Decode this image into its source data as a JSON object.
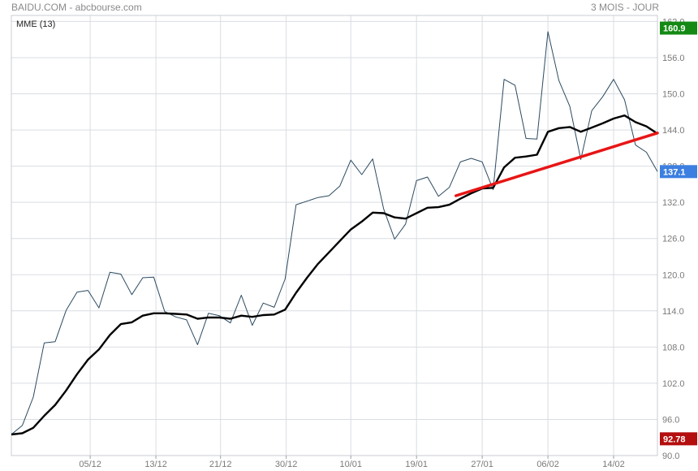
{
  "header": {
    "title": "BAIDU.COM - abcbourse.com",
    "period": "3 MOIS - JOUR"
  },
  "indicator": {
    "label": "MME (13)"
  },
  "colors": {
    "price": "#2b4a60",
    "ema": "#000000",
    "trend": "#e81515",
    "grid": "#d9dde2",
    "badge_high": "#148a14",
    "badge_last": "#3d7fe0",
    "badge_low": "#b40e0e"
  },
  "chart_data": {
    "type": "line",
    "title": "BAIDU.COM - abcbourse.com",
    "xlabel": "",
    "ylabel": "",
    "ylim": [
      90,
      163
    ],
    "y_ticks": [
      "90.0",
      "96.0",
      "102.0",
      "108.0",
      "114.0",
      "120.0",
      "126.0",
      "132.0",
      "138.0",
      "144.0",
      "150.0",
      "156.0",
      "162.0"
    ],
    "x_ticks": [
      {
        "label": "05/12",
        "index": 7.2
      },
      {
        "label": "13/12",
        "index": 13.2
      },
      {
        "label": "21/12",
        "index": 19.1
      },
      {
        "label": "30/12",
        "index": 25.1
      },
      {
        "label": "10/01",
        "index": 31.0
      },
      {
        "label": "19/01",
        "index": 37.0
      },
      {
        "label": "27/01",
        "index": 43.0
      },
      {
        "label": "06/02",
        "index": 49.0
      },
      {
        "label": "14/02",
        "index": 55.0
      }
    ],
    "series": [
      {
        "values": [
          93.5,
          95.0,
          99.7,
          108.7,
          108.9,
          114.1,
          117.1,
          117.4,
          114.5,
          120.4,
          120.1,
          116.7,
          119.5,
          119.6,
          113.9,
          113.0,
          112.5,
          108.4,
          113.6,
          113.2,
          112.0,
          116.6,
          111.6,
          115.3,
          114.6,
          119.3,
          131.6,
          132.2,
          132.8,
          133.1,
          134.7,
          139.0,
          136.6,
          139.2,
          130.9,
          125.9,
          128.4,
          135.6,
          136.2,
          133.0,
          134.5,
          138.7,
          139.3,
          138.7,
          134.1,
          152.4,
          151.4,
          142.6,
          142.5,
          160.3,
          152.2,
          147.9,
          139.1,
          147.2,
          149.5,
          152.4,
          149.0,
          141.5,
          140.3,
          137.1
        ]
      },
      {
        "name": "MME (13)",
        "values": [
          93.5,
          93.7,
          94.6,
          96.6,
          98.4,
          100.8,
          103.5,
          105.9,
          107.6,
          110.0,
          111.8,
          112.1,
          113.2,
          113.6,
          113.6,
          113.5,
          113.4,
          112.7,
          112.9,
          112.9,
          112.7,
          113.2,
          113.0,
          113.3,
          113.4,
          114.2,
          117.0,
          119.5,
          121.8,
          123.7,
          125.6,
          127.5,
          128.8,
          130.3,
          130.2,
          129.5,
          129.3,
          130.2,
          131.1,
          131.2,
          131.6,
          132.6,
          133.5,
          134.3,
          134.4,
          137.8,
          139.4,
          139.6,
          139.9,
          143.7,
          144.3,
          144.5,
          143.7,
          144.4,
          145.1,
          145.9,
          146.4,
          145.3,
          144.6,
          143.4
        ]
      }
    ],
    "trendline": {
      "x": [
        40.6,
        59.0
      ],
      "y": [
        133.1,
        143.5
      ]
    },
    "price_labels": {
      "high": "160.9",
      "last": "137.1",
      "low": "92.78"
    },
    "label_values": {
      "high": 160.9,
      "last": 137.1,
      "low": 92.78
    }
  }
}
